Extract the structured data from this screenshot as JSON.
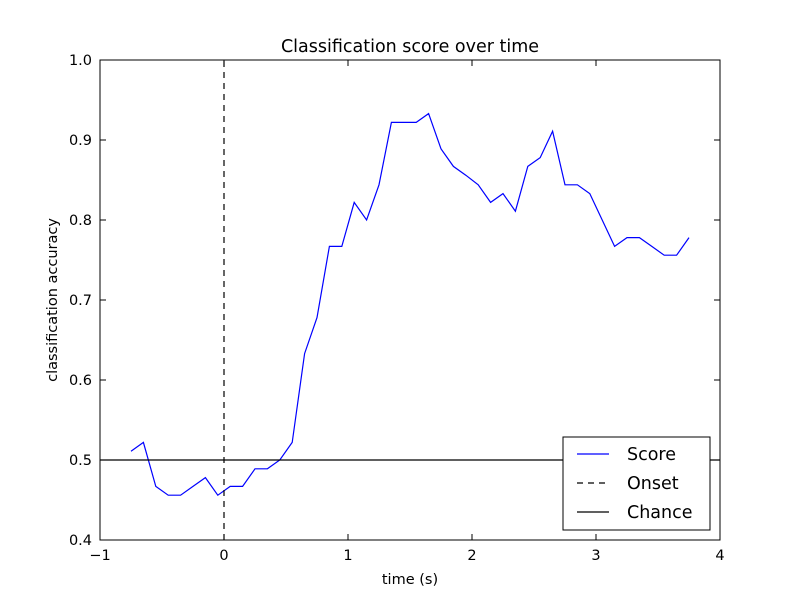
{
  "chart_data": {
    "type": "line",
    "title": "Classification score over time",
    "xlabel": "time (s)",
    "ylabel": "classification accuracy",
    "xlim": [
      -1,
      4
    ],
    "ylim": [
      0.4,
      1.0
    ],
    "xticks": [
      -1,
      0,
      1,
      2,
      3,
      4
    ],
    "xtick_labels": [
      "−1",
      "0",
      "1",
      "2",
      "3",
      "4"
    ],
    "yticks": [
      0.4,
      0.5,
      0.6,
      0.7,
      0.8,
      0.9,
      1.0
    ],
    "ytick_labels": [
      "0.4",
      "0.5",
      "0.6",
      "0.7",
      "0.8",
      "0.9",
      "1.0"
    ],
    "grid": false,
    "legend_position": "lower-right",
    "series": [
      {
        "name": "Score",
        "color": "#0000ff",
        "style": "solid",
        "x": [
          -0.75,
          -0.65,
          -0.55,
          -0.45,
          -0.35,
          -0.25,
          -0.15,
          -0.05,
          0.05,
          0.15,
          0.25,
          0.35,
          0.45,
          0.55,
          0.65,
          0.75,
          0.85,
          0.95,
          1.05,
          1.15,
          1.25,
          1.35,
          1.45,
          1.55,
          1.65,
          1.75,
          1.85,
          1.95,
          2.05,
          2.15,
          2.25,
          2.35,
          2.45,
          2.55,
          2.65,
          2.75,
          2.85,
          2.95,
          3.05,
          3.15,
          3.25,
          3.35,
          3.45,
          3.55,
          3.65,
          3.75
        ],
        "y": [
          0.511,
          0.522,
          0.467,
          0.456,
          0.456,
          0.467,
          0.478,
          0.456,
          0.467,
          0.467,
          0.489,
          0.489,
          0.5,
          0.522,
          0.633,
          0.678,
          0.767,
          0.767,
          0.822,
          0.8,
          0.844,
          0.922,
          0.922,
          0.922,
          0.933,
          0.889,
          0.867,
          0.856,
          0.844,
          0.822,
          0.833,
          0.811,
          0.867,
          0.878,
          0.911,
          0.844,
          0.844,
          0.833,
          0.8,
          0.767,
          0.778,
          0.778,
          0.767,
          0.756,
          0.756,
          0.778
        ]
      },
      {
        "name": "Onset",
        "color": "#000000",
        "style": "dashed",
        "x": [
          0,
          0
        ],
        "y": [
          0.4,
          1.0
        ]
      },
      {
        "name": "Chance",
        "color": "#000000",
        "style": "solid",
        "x": [
          -1,
          4
        ],
        "y": [
          0.5,
          0.5
        ]
      }
    ]
  }
}
